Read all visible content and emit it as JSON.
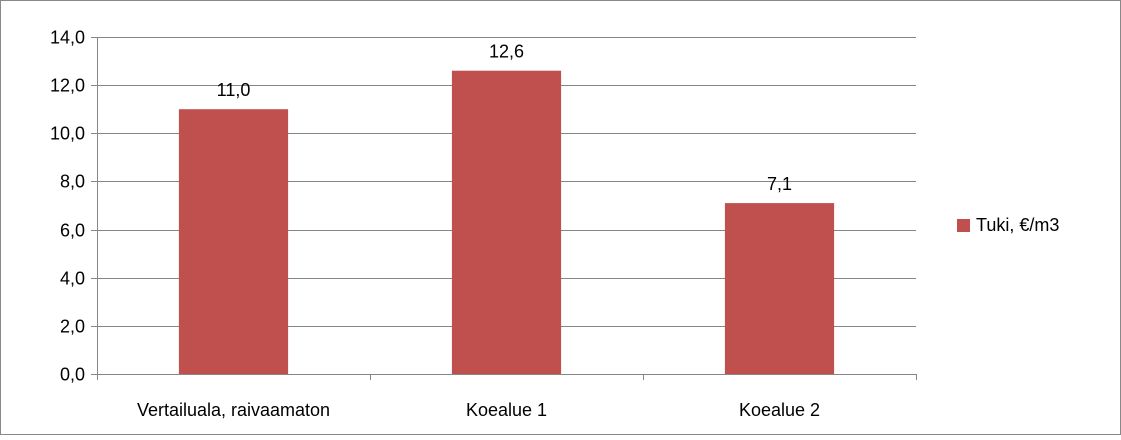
{
  "chart_data": {
    "type": "bar",
    "categories": [
      "Vertailuala, raivaamaton",
      "Koealue 1",
      "Koealue 2"
    ],
    "series": [
      {
        "name": "Tuki, €/m3",
        "values": [
          11.0,
          12.6,
          7.1
        ],
        "color": "#C0504D"
      }
    ],
    "data_labels": [
      "11,0",
      "12,6",
      "7,1"
    ],
    "ylim": [
      0,
      14
    ],
    "yticks": [
      {
        "value": 0,
        "label": "0,0"
      },
      {
        "value": 2,
        "label": "2,0"
      },
      {
        "value": 4,
        "label": "4,0"
      },
      {
        "value": 6,
        "label": "6,0"
      },
      {
        "value": 8,
        "label": "8,0"
      },
      {
        "value": 10,
        "label": "10,0"
      },
      {
        "value": 12,
        "label": "12,0"
      },
      {
        "value": 14,
        "label": "14,0"
      }
    ],
    "grid": true,
    "legend_position": "right",
    "title": "",
    "xlabel": "",
    "ylabel": ""
  }
}
